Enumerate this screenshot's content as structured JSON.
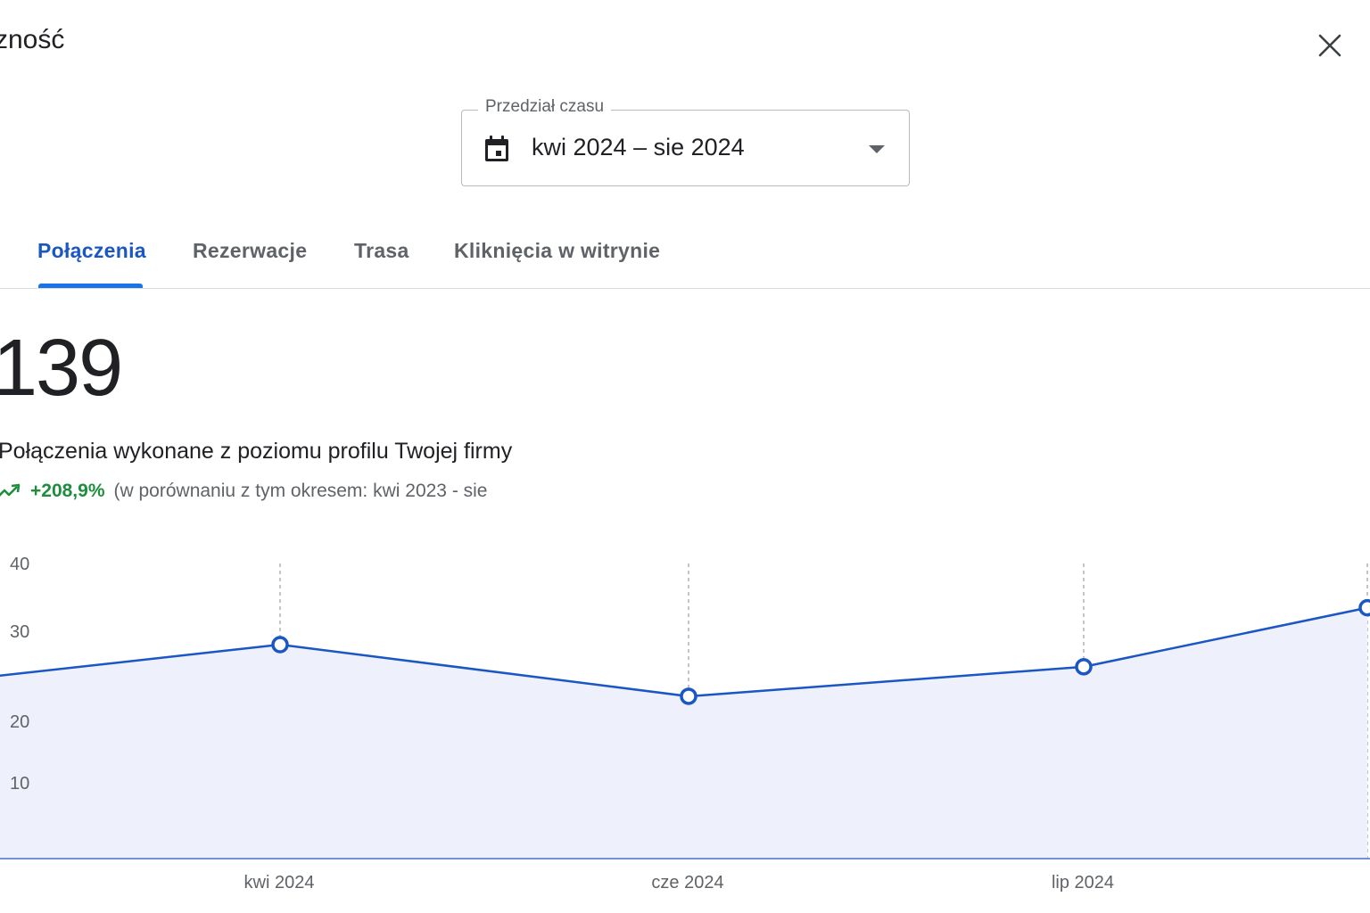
{
  "dialog": {
    "title": "zność",
    "close_icon": "close-icon"
  },
  "range": {
    "label": "Przedział czasu",
    "value": "kwi 2024 – sie 2024",
    "icon": "calendar-icon",
    "caret_icon": "dropdown-caret-icon"
  },
  "tabs": [
    {
      "label": "Połączenia",
      "active": true
    },
    {
      "label": "Rezerwacje",
      "active": false
    },
    {
      "label": "Trasa",
      "active": false
    },
    {
      "label": "Kliknięcia w witrynie",
      "active": false
    }
  ],
  "metric": {
    "value": "139",
    "title": "Połączenia wykonane z poziomu profilu Twojej firmy",
    "trend_icon": "trending-up-icon",
    "trend_pct": "+208,9%",
    "trend_comparison": "(w porównaniu z tym okresem: kwi 2023 - sie"
  },
  "colors": {
    "accent": "#1a73e8",
    "line": "#1a56c4",
    "area_fill": "#eef1fb",
    "positive": "#1e8e3e"
  },
  "chart_data": {
    "type": "area",
    "x": [
      "kwi 2024",
      "cze 2024",
      "lip 2024"
    ],
    "xlabels_visible": [
      "kwi 2024",
      "cze 2024",
      "lip 2024"
    ],
    "points": [
      {
        "x": "",
        "y": 24
      },
      {
        "x": "kwi 2024",
        "y": 29
      },
      {
        "x": "cze 2024",
        "y": 22
      },
      {
        "x": "lip 2024",
        "y": 26
      },
      {
        "x": "",
        "y": 34
      }
    ],
    "yticks": [
      "40",
      "30",
      "20",
      "10"
    ],
    "ylim": [
      0,
      40
    ],
    "grid": "vertical-dashed",
    "title": "",
    "xlabel": "",
    "ylabel": ""
  }
}
